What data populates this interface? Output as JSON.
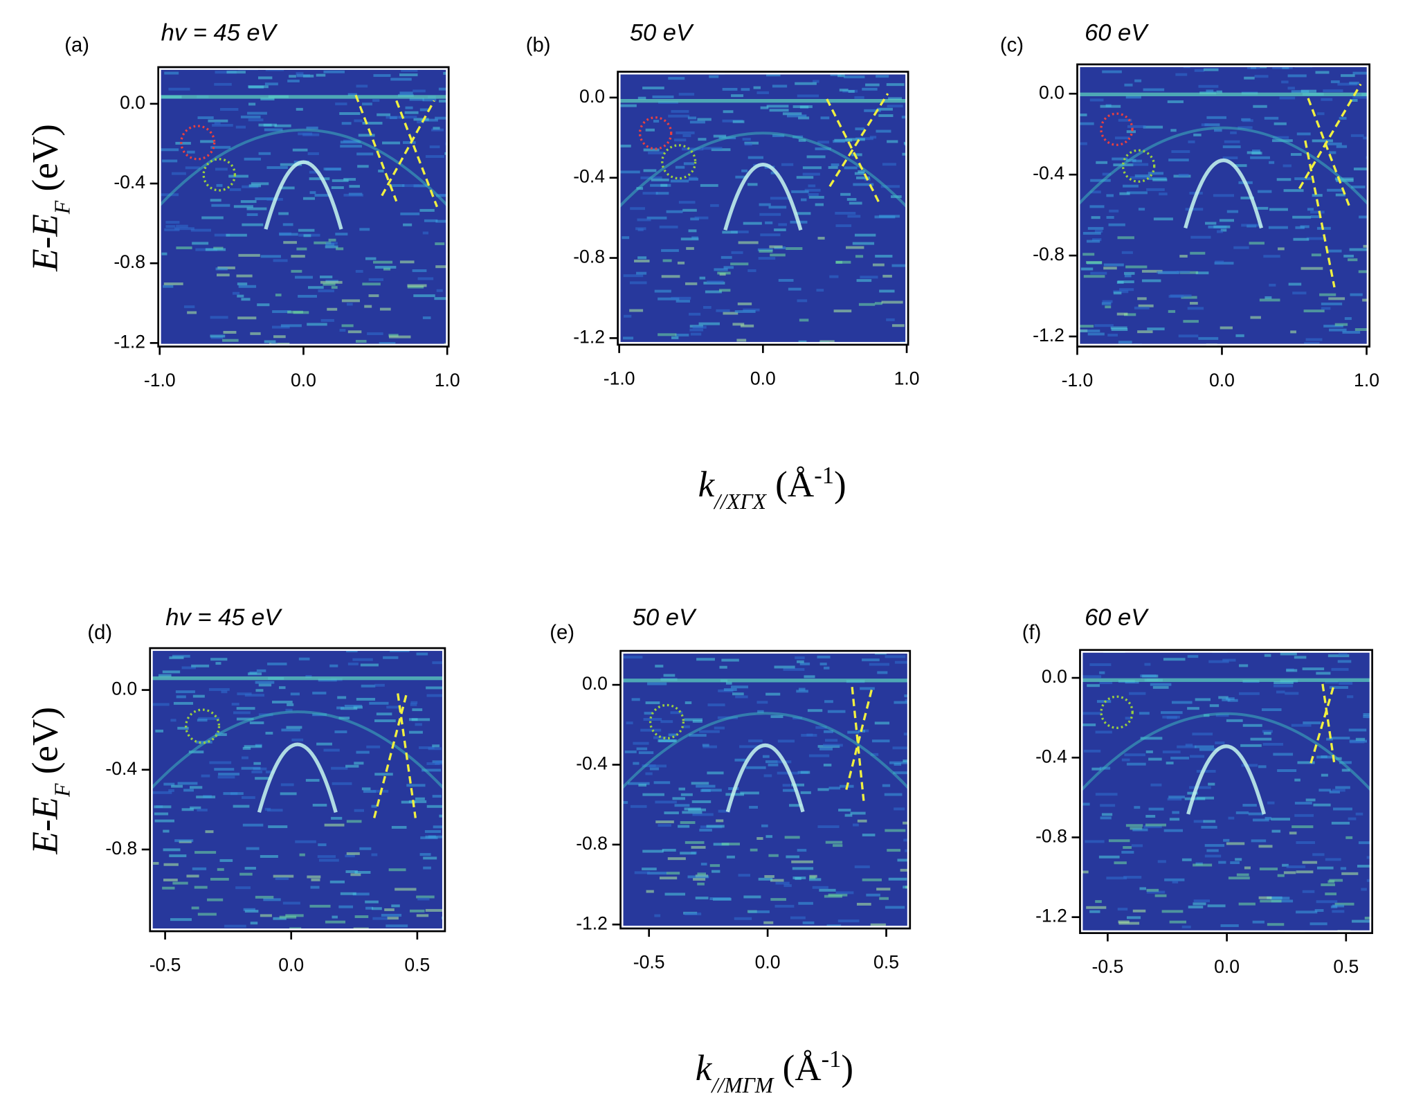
{
  "chart_data": [
    {
      "type": "image",
      "panel_label": "(a)",
      "title": "hv = 45 eV",
      "y_label": [
        "E-E",
        "F",
        " (eV)"
      ],
      "xlim": [
        -1.01,
        1.01
      ],
      "ylim": [
        -1.218,
        0.184
      ],
      "xticks": [
        {
          "value": -1.0,
          "label": "-1.0"
        },
        {
          "value": 0,
          "label": "0.0"
        },
        {
          "value": 1.0,
          "label": "1.0"
        }
      ],
      "yticks": [
        {
          "value": 0,
          "label": "0.0"
        },
        {
          "value": -0.4,
          "label": "-0.4"
        },
        {
          "value": -0.8,
          "label": "-0.8"
        },
        {
          "value": -1.2,
          "label": "-1.2"
        }
      ]
    },
    {
      "type": "image",
      "panel_label": "(b)",
      "title": "50 eV",
      "x_label": [
        "k",
        "//XΓX",
        " (Å",
        "-1",
        ")"
      ],
      "xlim": [
        -1.01,
        1.01
      ],
      "ylim": [
        -1.233,
        0.129
      ],
      "xticks": [
        {
          "value": -1.0,
          "label": "-1.0"
        },
        {
          "value": 0,
          "label": "0.0"
        },
        {
          "value": 1.0,
          "label": "1.0"
        }
      ],
      "yticks": [
        {
          "value": 0,
          "label": "0.0"
        },
        {
          "value": -0.4,
          "label": "-0.4"
        },
        {
          "value": -0.8,
          "label": "-0.8"
        },
        {
          "value": -1.2,
          "label": "-1.2"
        }
      ]
    },
    {
      "type": "image",
      "panel_label": "(c)",
      "title": "60 eV",
      "xlim": [
        -1.0,
        1.02
      ],
      "ylim": [
        -1.25,
        0.145
      ],
      "xticks": [
        {
          "value": -1.0,
          "label": "-1.0"
        },
        {
          "value": 0,
          "label": "0.0"
        },
        {
          "value": 1.0,
          "label": "1.0"
        }
      ],
      "yticks": [
        {
          "value": 0,
          "label": "0.0"
        },
        {
          "value": -0.4,
          "label": "-0.4"
        },
        {
          "value": -0.8,
          "label": "-0.8"
        },
        {
          "value": -1.2,
          "label": "-1.2"
        }
      ]
    },
    {
      "type": "image",
      "panel_label": "(d)",
      "title": "hv = 45 eV",
      "y_label": [
        "E-E",
        "F",
        " (eV)"
      ],
      "xlim": [
        -0.56,
        0.61
      ],
      "ylim": [
        -1.21,
        0.21
      ],
      "xticks": [
        {
          "value": -0.5,
          "label": "-0.5"
        },
        {
          "value": 0,
          "label": "0.0"
        },
        {
          "value": 0.5,
          "label": "0.5"
        }
      ],
      "yticks": [
        {
          "value": 0,
          "label": "0.0"
        },
        {
          "value": -0.4,
          "label": "-0.4"
        },
        {
          "value": -0.8,
          "label": "-0.8"
        }
      ]
    },
    {
      "type": "image",
      "panel_label": "(e)",
      "title": "50 eV",
      "x_label": [
        "k",
        "//MΓM",
        " (Å",
        "-1",
        ")"
      ],
      "xlim": [
        -0.62,
        0.6
      ],
      "ylim": [
        -1.22,
        0.17
      ],
      "xticks": [
        {
          "value": -0.5,
          "label": "-0.5"
        },
        {
          "value": 0,
          "label": "0.0"
        },
        {
          "value": 0.5,
          "label": "0.5"
        }
      ],
      "yticks": [
        {
          "value": 0,
          "label": "0.0"
        },
        {
          "value": -0.4,
          "label": "-0.4"
        },
        {
          "value": -0.8,
          "label": "-0.8"
        },
        {
          "value": -1.2,
          "label": "-1.2"
        }
      ]
    },
    {
      "type": "image",
      "panel_label": "(f)",
      "title": "60 eV",
      "xlim": [
        -0.616,
        0.61
      ],
      "ylim": [
        -1.28,
        0.14
      ],
      "xticks": [
        {
          "value": -0.5,
          "label": "-0.5"
        },
        {
          "value": 0,
          "label": "0.0"
        },
        {
          "value": 0.5,
          "label": "0.5"
        }
      ],
      "yticks": [
        {
          "value": 0,
          "label": "0.0"
        },
        {
          "value": -0.4,
          "label": "-0.4"
        },
        {
          "value": -0.8,
          "label": "-0.8"
        },
        {
          "value": -1.2,
          "label": "-1.2"
        }
      ]
    }
  ]
}
